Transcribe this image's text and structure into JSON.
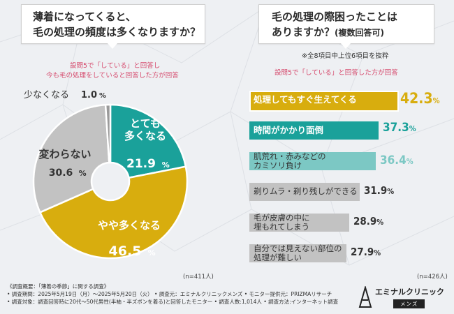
{
  "left_title": {
    "line1": "薄着になってくると、",
    "line2": "毛の処理の頻度は多くなりますか？"
  },
  "left_note": {
    "line1": "設問5で「している」と回答し",
    "line2": "今も毛の処理をしていると回答した方が回答"
  },
  "left_n": "(n=411人)",
  "right_title": {
    "line1": "毛の処理の際困ったことは",
    "line2": "ありますか？",
    "line2_small": "(複数回答可)"
  },
  "right_note_top": "※全8項目中上位6項目を抜粋",
  "right_note": "設問5で「している」と回答した方が回答",
  "right_n": "(n=426人)",
  "colors": {
    "teal": "#1aa19a",
    "gold": "#d8ad0e",
    "gray": "#c2c2c2",
    "gray_dark": "#9a9a9a",
    "light_teal": "#7cc8c4",
    "pink": "#d64b6e"
  },
  "chart_data": [
    {
      "type": "pie",
      "title": "薄着になってくると、毛の処理の頻度は多くなりますか？",
      "unit": "%",
      "slices": [
        {
          "label_lines": [
            "とても",
            "多くなる"
          ],
          "value": 21.9,
          "value_main": "21.9",
          "color": "#1aa19a"
        },
        {
          "label_lines": [
            "やや多くなる"
          ],
          "value": 46.5,
          "value_main": "46.5",
          "color": "#d8ad0e"
        },
        {
          "label_lines": [
            "変わらない"
          ],
          "value": 30.6,
          "value_main": "30.6",
          "color": "#c2c2c2"
        },
        {
          "label_lines": [
            "少なくなる"
          ],
          "value": 1.0,
          "value_main": "1.0",
          "color": "#9a9a9a"
        }
      ]
    },
    {
      "type": "bar",
      "orientation": "horizontal",
      "title": "毛の処理の際困ったことはありますか？(複数回答可)",
      "unit": "%",
      "categories": [
        [
          "処理してもすぐ生えてくる"
        ],
        [
          "時間がかかり面倒"
        ],
        [
          "肌荒れ・赤みなどの",
          "カミソリ負け"
        ],
        [
          "剃りムラ・剃り残しができる"
        ],
        [
          "毛が皮膚の中に",
          "埋もれてしまう"
        ],
        [
          "自分では見えない部位の",
          "処理が難しい"
        ]
      ],
      "values": [
        42.3,
        37.3,
        36.4,
        31.9,
        28.9,
        27.9
      ],
      "value_labels": [
        "42.3",
        "37.3",
        "36.4",
        "31.9",
        "28.9",
        "27.9"
      ],
      "colors": [
        "#d8ad0e",
        "#1aa19a",
        "#7cc8c4",
        "#c2c2c2",
        "#c2c2c2",
        "#c2c2c2"
      ]
    }
  ],
  "footer": {
    "line1": "《調査概要：「薄着の季節」に関する調査》",
    "line2": "• 調査期間：2025年5月19日（月）〜2025年5月20日（火）  • 調査元：エミナルクリニックメンズ  • モニター提供元：PRIZMAリサーチ",
    "line3": "• 調査対象：調査回答時に20代〜50代男性(半袖・半ズボンを着る)と回答したモニター  • 調査人数:1,014人  • 調査方法:インターネット調査"
  },
  "logo": {
    "name": "エミナルクリニック",
    "sub": "メンズ"
  }
}
